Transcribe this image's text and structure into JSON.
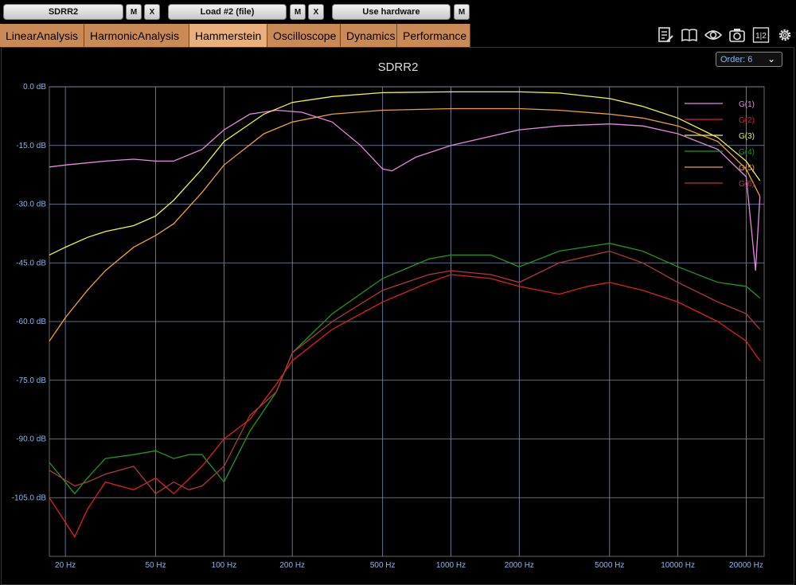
{
  "toolbar": {
    "device_label": "SDRR2",
    "m_label": "M",
    "x_label": "X",
    "load_label": "Load #2 (file)",
    "hardware_label": "Use hardware"
  },
  "tabs": [
    {
      "label": "LinearAnalysis"
    },
    {
      "label": "HarmonicAnalysis"
    },
    {
      "label": "Hammerstein"
    },
    {
      "label": "Oscilloscope"
    },
    {
      "label": "Dynamics"
    },
    {
      "label": "Performance"
    }
  ],
  "icons": [
    "notes-icon",
    "book-icon",
    "eye-icon",
    "camera-icon",
    "split-view-icon",
    "gear-icon"
  ],
  "split_icon_text": "1|2",
  "order_select": {
    "label": "Order: 6"
  },
  "chart_data": {
    "type": "line",
    "title": "SDRR2",
    "xscale": "log",
    "xlim": [
      17,
      24000
    ],
    "ylim": [
      -120,
      0
    ],
    "x_tick_values": [
      20,
      50,
      100,
      200,
      500,
      1000,
      2000,
      5000,
      10000,
      20000
    ],
    "x_tick_labels": [
      "20 Hz",
      "50 Hz",
      "100 Hz",
      "200 Hz",
      "500 Hz",
      "1000 Hz",
      "2000 Hz",
      "5000 Hz",
      "10000 Hz",
      "20000 Hz"
    ],
    "y_tick_values": [
      0,
      -15,
      -30,
      -45,
      -60,
      -75,
      -90,
      -105
    ],
    "y_tick_labels": [
      "0.0 dB",
      "-15.0 dB",
      "-30.0 dB",
      "-45.0 dB",
      "-60.0 dB",
      "-75.0 dB",
      "-90.0 dB",
      "-105.0 dB"
    ],
    "legend_position": "top-right",
    "series": [
      {
        "name": "G(1)",
        "color": "#e48ae0",
        "x": [
          17,
          20,
          30,
          40,
          50,
          60,
          80,
          100,
          130,
          170,
          220,
          300,
          400,
          500,
          550,
          700,
          1000,
          2000,
          3000,
          5000,
          7000,
          10000,
          15000,
          20000,
          22000,
          23000
        ],
        "y": [
          -20.5,
          -20,
          -19,
          -18.5,
          -19,
          -19,
          -16,
          -11,
          -7,
          -6,
          -6.5,
          -9,
          -15,
          -21,
          -21.5,
          -18,
          -15,
          -11,
          -10,
          -9.5,
          -10,
          -12,
          -16,
          -23,
          -47,
          -28
        ]
      },
      {
        "name": "G(2)",
        "color": "#e02020",
        "x": [
          17,
          22,
          25,
          30,
          40,
          50,
          60,
          80,
          100,
          130,
          170,
          200,
          300,
          500,
          800,
          1000,
          1500,
          2000,
          3000,
          4000,
          5000,
          7000,
          10000,
          15000,
          20000,
          23000
        ],
        "y": [
          -105,
          -115,
          -108,
          -101,
          -103,
          -100,
          -104,
          -97,
          -90,
          -85,
          -76,
          -70,
          -62,
          -55,
          -50,
          -48,
          -49,
          -51,
          -53,
          -51,
          -50,
          -52,
          -55,
          -60,
          -65,
          -70
        ]
      },
      {
        "name": "G(3)",
        "color": "#f3f340",
        "x": [
          17,
          20,
          25,
          30,
          40,
          50,
          60,
          80,
          100,
          150,
          200,
          300,
          500,
          1000,
          2000,
          3000,
          5000,
          7000,
          10000,
          15000,
          20000,
          23000
        ],
        "y": [
          -43,
          -41,
          -38.5,
          -37,
          -35.5,
          -33,
          -29,
          -21,
          -14,
          -7,
          -4,
          -2.5,
          -1.5,
          -1.3,
          -1.3,
          -1.6,
          -3,
          -5,
          -8,
          -13,
          -19,
          -24
        ]
      },
      {
        "name": "G(4)",
        "color": "#1e9a1e",
        "x": [
          17,
          22,
          25,
          30,
          40,
          50,
          60,
          70,
          80,
          100,
          130,
          170,
          200,
          300,
          500,
          800,
          1000,
          1500,
          2000,
          3000,
          5000,
          7000,
          10000,
          15000,
          20000,
          23000
        ],
        "y": [
          -96,
          -104,
          -100,
          -95,
          -94,
          -93,
          -95,
          -94,
          -94,
          -101,
          -88,
          -78,
          -68,
          -58,
          -49,
          -44,
          -43,
          -43,
          -46,
          -42,
          -40,
          -42,
          -46,
          -50,
          -51,
          -54
        ]
      },
      {
        "name": "G(5)",
        "color": "#f0a030",
        "x": [
          17,
          20,
          25,
          30,
          40,
          50,
          60,
          80,
          100,
          150,
          200,
          300,
          500,
          1000,
          2000,
          3000,
          5000,
          7000,
          10000,
          15000,
          20000,
          23000
        ],
        "y": [
          -65,
          -59,
          -52,
          -47,
          -41,
          -38,
          -35,
          -27,
          -20,
          -12,
          -9,
          -7,
          -6,
          -5.6,
          -5.6,
          -6,
          -7,
          -8,
          -10,
          -14,
          -21,
          -28
        ]
      },
      {
        "name": "G(6)",
        "color": "#b03a3a",
        "x": [
          17,
          22,
          25,
          30,
          40,
          50,
          60,
          70,
          80,
          100,
          130,
          170,
          200,
          300,
          500,
          800,
          1000,
          1500,
          2000,
          3000,
          5000,
          7000,
          10000,
          15000,
          20000,
          23000
        ],
        "y": [
          -98,
          -102,
          -101,
          -99,
          -97,
          -104,
          -101,
          -103,
          -102,
          -97,
          -84,
          -78,
          -68,
          -60,
          -52,
          -48,
          -47,
          -48,
          -50,
          -45,
          -42,
          -45,
          -50,
          -55,
          -58,
          -62
        ]
      }
    ]
  }
}
